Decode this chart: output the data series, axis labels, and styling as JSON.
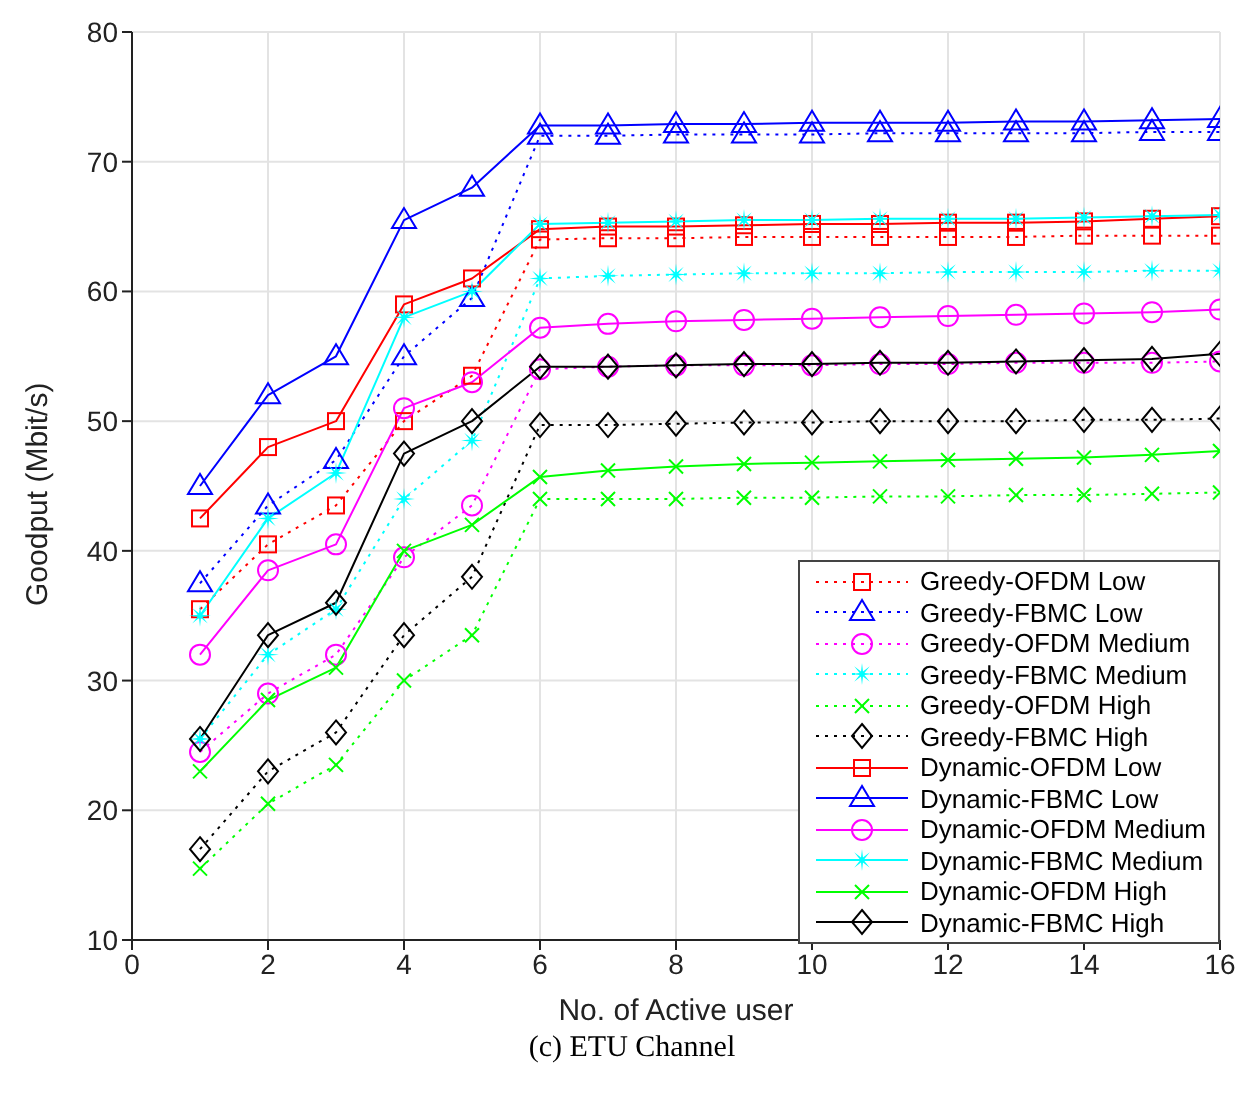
{
  "chart_data": {
    "type": "line",
    "title": "(c) ETU Channel",
    "xlabel": "No. of Active user",
    "ylabel": "Goodput (Mbit/s)",
    "x": [
      1,
      2,
      3,
      4,
      5,
      6,
      7,
      8,
      9,
      10,
      11,
      12,
      13,
      14,
      15,
      16
    ],
    "xlim": [
      0,
      16
    ],
    "xticks": [
      0,
      2,
      4,
      6,
      8,
      10,
      12,
      14,
      16
    ],
    "ylim": [
      10,
      80
    ],
    "yticks": [
      10,
      20,
      30,
      40,
      50,
      60,
      70,
      80
    ],
    "grid": true,
    "legend": "bottom right",
    "series": [
      {
        "name": "Greedy-OFDM Low",
        "color": "#ff0000",
        "marker": "square",
        "line_style": "dotted",
        "values": [
          35.5,
          40.5,
          43.5,
          50,
          53.5,
          64,
          64.1,
          64.1,
          64.2,
          64.2,
          64.2,
          64.2,
          64.2,
          64.3,
          64.3,
          64.3
        ]
      },
      {
        "name": "Greedy-FBMC Low",
        "color": "#0000ff",
        "marker": "triangle",
        "line_style": "dotted",
        "values": [
          37.5,
          43.5,
          47,
          55,
          59.5,
          72,
          72,
          72.1,
          72.1,
          72.1,
          72.2,
          72.2,
          72.2,
          72.2,
          72.3,
          72.3
        ]
      },
      {
        "name": "Greedy-OFDM Medium",
        "color": "#ff00ff",
        "marker": "circle",
        "line_style": "dotted",
        "values": [
          24.5,
          29,
          32,
          39.5,
          43.5,
          54,
          54.2,
          54.3,
          54.3,
          54.3,
          54.4,
          54.4,
          54.5,
          54.5,
          54.5,
          54.6
        ]
      },
      {
        "name": "Greedy-FBMC Medium",
        "color": "#00ffff",
        "marker": "star",
        "line_style": "dotted",
        "values": [
          25.5,
          32,
          35.5,
          44,
          48.5,
          61,
          61.2,
          61.3,
          61.4,
          61.4,
          61.4,
          61.5,
          61.5,
          61.5,
          61.6,
          61.6
        ]
      },
      {
        "name": "Greedy-OFDM High",
        "color": "#00ff00",
        "marker": "cross",
        "line_style": "dotted",
        "values": [
          15.5,
          20.5,
          23.5,
          30,
          33.5,
          44,
          44,
          44,
          44.1,
          44.1,
          44.2,
          44.2,
          44.3,
          44.3,
          44.4,
          44.5
        ]
      },
      {
        "name": "Greedy-FBMC High",
        "color": "#000000",
        "marker": "diamond",
        "line_style": "dotted",
        "values": [
          17,
          23,
          26,
          33.5,
          38,
          49.7,
          49.7,
          49.8,
          49.9,
          49.9,
          50,
          50,
          50,
          50.1,
          50.1,
          50.2
        ]
      },
      {
        "name": "Dynamic-OFDM Low",
        "color": "#ff0000",
        "marker": "square",
        "line_style": "solid",
        "values": [
          42.5,
          48,
          50,
          59,
          61,
          64.8,
          65,
          65,
          65.1,
          65.2,
          65.2,
          65.3,
          65.3,
          65.4,
          65.6,
          65.8
        ]
      },
      {
        "name": "Dynamic-FBMC Low",
        "color": "#0000ff",
        "marker": "triangle",
        "line_style": "solid",
        "values": [
          45,
          52,
          55,
          65.5,
          68,
          72.8,
          72.8,
          72.9,
          72.9,
          73,
          73,
          73,
          73.1,
          73.1,
          73.2,
          73.3
        ]
      },
      {
        "name": "Dynamic-OFDM Medium",
        "color": "#ff00ff",
        "marker": "circle",
        "line_style": "solid",
        "values": [
          32,
          38.5,
          40.5,
          51,
          53,
          57.2,
          57.5,
          57.7,
          57.8,
          57.9,
          58,
          58.1,
          58.2,
          58.3,
          58.4,
          58.6
        ]
      },
      {
        "name": "Dynamic-FBMC Medium",
        "color": "#00ffff",
        "marker": "star",
        "line_style": "solid",
        "values": [
          35,
          42.5,
          46,
          58,
          60,
          65.2,
          65.3,
          65.4,
          65.5,
          65.5,
          65.6,
          65.6,
          65.6,
          65.7,
          65.8,
          65.9
        ]
      },
      {
        "name": "Dynamic-OFDM High",
        "color": "#00ff00",
        "marker": "cross",
        "line_style": "solid",
        "values": [
          23,
          28.5,
          31,
          40,
          42,
          45.7,
          46.2,
          46.5,
          46.7,
          46.8,
          46.9,
          47,
          47.1,
          47.2,
          47.4,
          47.7
        ]
      },
      {
        "name": "Dynamic-FBMC High",
        "color": "#000000",
        "marker": "diamond",
        "line_style": "solid",
        "values": [
          25.5,
          33.5,
          36,
          47.5,
          50,
          54.2,
          54.2,
          54.3,
          54.4,
          54.4,
          54.5,
          54.5,
          54.6,
          54.7,
          54.8,
          55.2
        ]
      }
    ]
  }
}
